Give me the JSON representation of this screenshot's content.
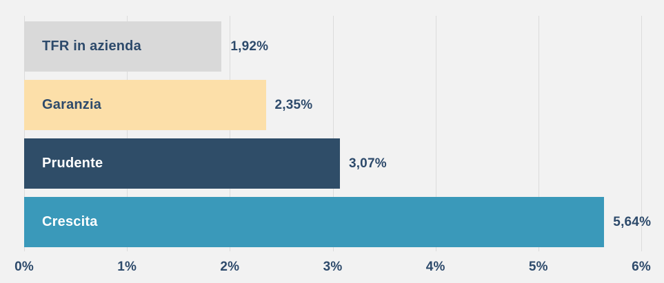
{
  "chart_data": {
    "type": "bar",
    "orientation": "horizontal",
    "title": "",
    "xlabel": "",
    "ylabel": "",
    "categories": [
      "TFR in azienda",
      "Garanzia",
      "Prudente",
      "Crescita"
    ],
    "values": [
      1.92,
      2.35,
      3.07,
      5.64
    ],
    "value_labels": [
      "1,92%",
      "2,35%",
      "3,07%",
      "5,64%"
    ],
    "bar_colors": [
      "#d9d9d9",
      "#fcdfa9",
      "#2f4d68",
      "#3a99ba"
    ],
    "bar_label_colors": [
      "#2d4a6b",
      "#2d4a6b",
      "#ffffff",
      "#ffffff"
    ],
    "value_label_color": "#2d4a6b",
    "x_ticks": [
      "0%",
      "1%",
      "2%",
      "3%",
      "4%",
      "5%",
      "6%"
    ],
    "x_tick_values": [
      0,
      1,
      2,
      3,
      4,
      5,
      6
    ],
    "xlim": [
      0,
      6
    ],
    "grid": true,
    "legend": "none",
    "background_color": "#f2f2f2",
    "gridline_color": "#dbdbdb",
    "axis_label_color": "#2d4a6b"
  }
}
